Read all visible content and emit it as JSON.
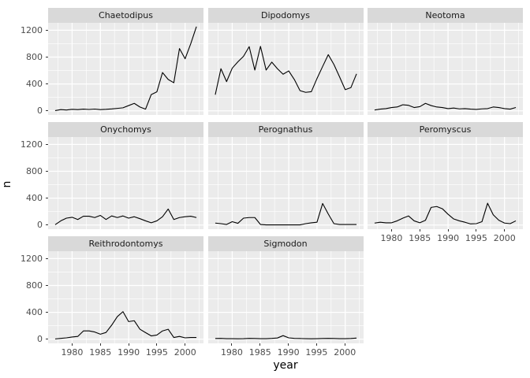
{
  "chart_data": {
    "type": "line",
    "title": "",
    "xlabel": "year",
    "ylabel": "n",
    "facet_variable": "genus",
    "legend": "none",
    "grid": "white major+minor gridlines on grey panels",
    "x": [
      1977,
      1978,
      1979,
      1980,
      1981,
      1982,
      1983,
      1984,
      1985,
      1986,
      1987,
      1988,
      1989,
      1990,
      1991,
      1992,
      1993,
      1994,
      1995,
      1996,
      1997,
      1998,
      1999,
      2000,
      2001,
      2002
    ],
    "x_ticks": [
      1980,
      1985,
      1990,
      1995,
      2000
    ],
    "x_minor_ticks": [
      1977.5,
      1982.5,
      1987.5,
      1992.5,
      1997.5,
      2002.5
    ],
    "y_ticks": [
      0,
      400,
      800,
      1200
    ],
    "y_minor_ticks": [
      200,
      600,
      1000
    ],
    "xlim": [
      1975.75,
      2003.25
    ],
    "ylim": [
      -62,
      1310
    ],
    "facets": [
      {
        "name": "Chaetodipus",
        "values": [
          3,
          18,
          12,
          22,
          18,
          25,
          20,
          26,
          18,
          22,
          28,
          36,
          45,
          78,
          111,
          57,
          25,
          242,
          283,
          570,
          467,
          418,
          927,
          775,
          1000,
          1254
        ]
      },
      {
        "name": "Dipodomys",
        "values": [
          240,
          627,
          435,
          635,
          730,
          812,
          955,
          607,
          960,
          607,
          725,
          627,
          545,
          594,
          465,
          300,
          275,
          285,
          480,
          660,
          836,
          690,
          505,
          315,
          345,
          550
        ]
      },
      {
        "name": "Neotoma",
        "values": [
          12,
          25,
          33,
          49,
          57,
          90,
          82,
          49,
          62,
          111,
          78,
          57,
          49,
          33,
          41,
          29,
          33,
          25,
          21,
          29,
          33,
          57,
          49,
          33,
          25,
          49
        ]
      },
      {
        "name": "Onychomys",
        "values": [
          5,
          62,
          102,
          115,
          82,
          131,
          131,
          111,
          143,
          82,
          135,
          111,
          135,
          102,
          123,
          94,
          62,
          33,
          62,
          123,
          238,
          82,
          111,
          123,
          131,
          111
        ]
      },
      {
        "name": "Perognathus",
        "values": [
          29,
          20,
          8,
          49,
          25,
          102,
          111,
          111,
          8,
          2,
          2,
          2,
          2,
          2,
          2,
          2,
          20,
          33,
          41,
          320,
          164,
          20,
          8,
          8,
          8,
          8
        ]
      },
      {
        "name": "Peromyscus",
        "values": [
          29,
          41,
          33,
          33,
          62,
          102,
          135,
          62,
          33,
          70,
          262,
          275,
          242,
          160,
          90,
          62,
          41,
          16,
          20,
          49,
          324,
          152,
          70,
          29,
          20,
          62
        ]
      },
      {
        "name": "Reithrodontomys",
        "values": [
          4,
          12,
          20,
          33,
          41,
          123,
          123,
          107,
          74,
          100,
          209,
          336,
          410,
          262,
          275,
          148,
          98,
          49,
          62,
          123,
          148,
          25,
          41,
          20,
          25,
          25
        ]
      },
      {
        "name": "Sigmodon",
        "values": [
          10,
          12,
          8,
          8,
          6,
          8,
          12,
          10,
          8,
          8,
          12,
          18,
          53,
          20,
          12,
          10,
          8,
          6,
          8,
          10,
          12,
          10,
          8,
          8,
          10,
          16
        ]
      }
    ],
    "style": {
      "panel_background": "#EBEBEB",
      "strip_background": "#D9D9D9",
      "grid_color": "#FFFFFF",
      "line_color": "#000000",
      "tick_mark_color": "#333333",
      "tick_label_color": "#4D4D4D",
      "strip_text_color": "#1A1A1A",
      "axis_title_color": "#000000"
    }
  }
}
